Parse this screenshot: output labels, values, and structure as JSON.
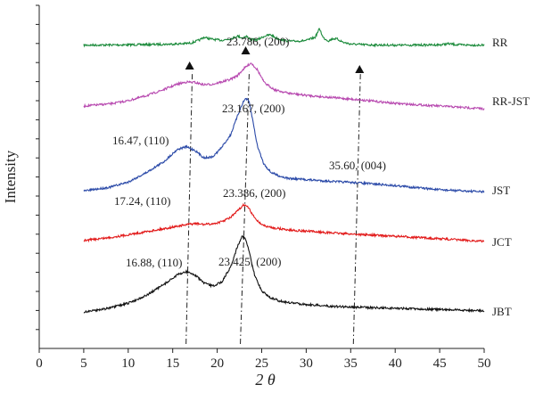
{
  "chart_data": {
    "type": "line",
    "xlabel": "2 θ",
    "ylabel": "Intensity",
    "xlim": [
      0,
      50
    ],
    "xticks": [
      0,
      5,
      10,
      15,
      20,
      25,
      30,
      35,
      40,
      45,
      50
    ],
    "grid": false,
    "legend": "labels at right end of each curve",
    "series": [
      {
        "name": "RR",
        "color": "#1a8a3a",
        "x": [
          5,
          10,
          14,
          16,
          17,
          18,
          18.5,
          19.5,
          20.5,
          21.5,
          22.3,
          22.8,
          23.3,
          23.8,
          24.5,
          25.3,
          26,
          26.6,
          27.5,
          28.5,
          30,
          31,
          31.5,
          31.9,
          32.5,
          33,
          33.5,
          34.2,
          35,
          37,
          40,
          43,
          45,
          46,
          47,
          50
        ],
        "y": [
          0.93,
          1.18,
          1.6,
          2.0,
          2.5,
          4.8,
          7.0,
          5.4,
          4.7,
          5.8,
          8.0,
          6.5,
          7.6,
          5.3,
          5.0,
          7.9,
          9.0,
          6.5,
          4.5,
          3.9,
          4.5,
          7.0,
          13.8,
          6.7,
          4.2,
          6.0,
          5.6,
          3.0,
          1.8,
          1.1,
          0.9,
          1.0,
          1.2,
          2.0,
          1.2,
          0.85
        ]
      },
      {
        "name": "RR-JST",
        "color": "#b84ab0",
        "x": [
          5,
          8,
          10,
          12,
          14,
          15.5,
          16.5,
          17.5,
          18.5,
          19.5,
          20.5,
          21.5,
          22.3,
          23,
          23.8,
          24.5,
          25.3,
          26.5,
          28,
          30,
          33,
          36,
          40,
          45,
          50
        ],
        "y": [
          1.8,
          2.3,
          3.0,
          4.1,
          5.5,
          6.7,
          7.2,
          7.1,
          6.6,
          6.7,
          7.2,
          7.8,
          8.7,
          10.2,
          11.5,
          10.0,
          7.0,
          5.4,
          4.7,
          4.2,
          3.7,
          3.2,
          2.4,
          1.8,
          1.2
        ]
      },
      {
        "name": "JST",
        "color": "#2b4aa8",
        "x": [
          5,
          8,
          10,
          12,
          14,
          15.5,
          16.5,
          17.5,
          18.5,
          19.5,
          20.5,
          21.5,
          22.3,
          22.8,
          23.2,
          23.6,
          24,
          24.5,
          25.2,
          26,
          27,
          28,
          30,
          33,
          36,
          40,
          45,
          50
        ],
        "y": [
          1.7,
          3.0,
          4.7,
          7.8,
          11.5,
          15.6,
          16.5,
          15.3,
          12.8,
          13.1,
          16.3,
          20.5,
          27.0,
          30.7,
          32.8,
          31.5,
          25.3,
          17.0,
          11.0,
          8.0,
          6.7,
          5.9,
          5.5,
          4.9,
          4.4,
          3.5,
          2.1,
          1.4
        ]
      },
      {
        "name": "JCT",
        "color": "#e21a1a",
        "x": [
          5,
          8,
          10,
          12,
          14,
          15.5,
          16.5,
          17.5,
          18.5,
          19.5,
          20.5,
          21.5,
          22.3,
          23,
          23.5,
          24,
          24.8,
          25.5,
          26.5,
          28,
          30,
          33,
          36,
          40,
          45,
          50
        ],
        "y": [
          1.8,
          2.8,
          3.7,
          4.7,
          5.7,
          6.5,
          7.0,
          7.4,
          7.1,
          7.3,
          8.0,
          9.4,
          11.6,
          13.6,
          12.7,
          10.1,
          7.5,
          6.4,
          5.9,
          5.3,
          4.9,
          4.3,
          3.8,
          3.2,
          2.4,
          1.5
        ]
      },
      {
        "name": "JBT",
        "color": "#111111",
        "x": [
          5,
          8,
          10,
          12,
          14,
          15.5,
          16.5,
          17.5,
          18.5,
          19.5,
          20.5,
          21.5,
          22.3,
          22.8,
          23.2,
          23.6,
          24.2,
          25,
          26,
          27,
          28,
          30,
          33,
          36,
          40,
          45,
          50
        ],
        "y": [
          0.8,
          2.1,
          3.6,
          6.0,
          9.5,
          12.5,
          13.6,
          12.5,
          10.0,
          9.0,
          10.3,
          15.0,
          21.8,
          24.8,
          23.9,
          19.7,
          12.5,
          7.5,
          5.3,
          4.3,
          3.8,
          3.2,
          2.6,
          2.3,
          2.0,
          1.6,
          1.2
        ]
      }
    ],
    "peak_annotations": [
      {
        "text": "23.786, (200)",
        "series": "RR-JST"
      },
      {
        "text": "23.167, (200)",
        "series": "JST"
      },
      {
        "text": "16.47, (110)",
        "series": "JST"
      },
      {
        "text": "35.60, (004)",
        "series": "JST"
      },
      {
        "text": "17.24, (110)",
        "series": "JCT"
      },
      {
        "text": "23.386, (200)",
        "series": "JCT"
      },
      {
        "text": "16.88, (110)",
        "series": "JBT"
      },
      {
        "text": "23.425, (200)",
        "series": "JBT"
      }
    ],
    "marker_x": [
      16.9,
      23.2,
      36.0
    ],
    "guide_lines": [
      {
        "x_bottom": 16.5,
        "x_top": 17.2
      },
      {
        "x_bottom": 22.6,
        "x_top": 23.6
      },
      {
        "x_bottom": 35.3,
        "x_top": 36.1
      }
    ]
  }
}
